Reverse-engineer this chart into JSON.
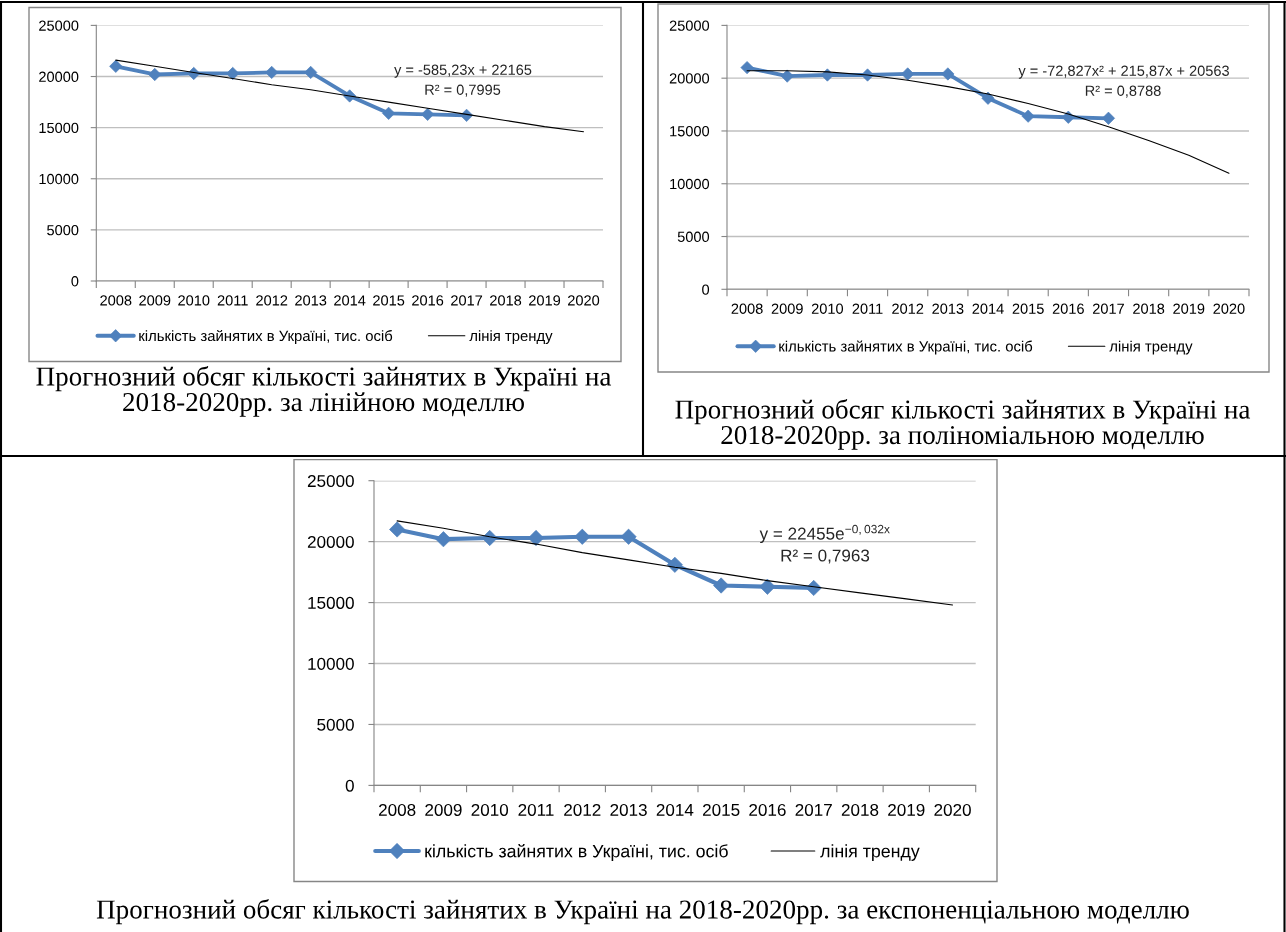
{
  "chart_data": [
    {
      "type": "line",
      "categories": [
        "2008",
        "2009",
        "2010",
        "2011",
        "2012",
        "2013",
        "2014",
        "2015",
        "2016",
        "2017",
        "2018",
        "2019",
        "2020"
      ],
      "series": [
        {
          "name": "кількість зайнятих в Україні, тис. осіб",
          "color": "#4f81bd",
          "marker": "diamond",
          "values": [
            21000,
            20200,
            20300,
            20300,
            20400,
            20400,
            18100,
            16400,
            16300,
            16200,
            null,
            null,
            null
          ]
        },
        {
          "name": "лінія тренду",
          "color": "#000000",
          "marker": "none",
          "values": [
            21600,
            21000,
            20400,
            19800,
            19200,
            18700,
            18100,
            17500,
            16900,
            16300,
            15700,
            15100,
            14600
          ]
        }
      ],
      "ylim": [
        0,
        25000
      ],
      "yticks": [
        0,
        5000,
        10000,
        15000,
        20000,
        25000
      ],
      "grid": "y",
      "legend": "bottom",
      "annotations": [
        "y = -585,23x + 22165",
        "R² = 0,7995",
        "Прогнозний обсяг кількості зайнятих в Україні на 2018-2020рр. за лінійною моделлю"
      ]
    },
    {
      "type": "line",
      "categories": [
        "2008",
        "2009",
        "2010",
        "2011",
        "2012",
        "2013",
        "2014",
        "2015",
        "2016",
        "2017",
        "2018",
        "2019",
        "2020"
      ],
      "series": [
        {
          "name": "кількість зайнятих в Україні, тис. осіб",
          "color": "#4f81bd",
          "marker": "diamond",
          "values": [
            21000,
            20200,
            20300,
            20300,
            20400,
            20400,
            18100,
            16400,
            16300,
            16200,
            null,
            null,
            null
          ]
        },
        {
          "name": "лінія тренду",
          "color": "#000000",
          "marker": "none",
          "values": [
            20700,
            20700,
            20600,
            20300,
            19800,
            19200,
            18500,
            17600,
            16600,
            15400,
            14100,
            12700,
            11000
          ]
        }
      ],
      "ylim": [
        0,
        25000
      ],
      "yticks": [
        0,
        5000,
        10000,
        15000,
        20000,
        25000
      ],
      "grid": "y",
      "legend": "bottom",
      "annotations": [
        "y = -72,827x² + 215,87x + 20563",
        "R² = 0,8788",
        "Прогнозний обсяг кількості зайнятих в Україні на 2018-2020рр. за поліноміальною моделлю"
      ]
    },
    {
      "type": "line",
      "categories": [
        "2008",
        "2009",
        "2010",
        "2011",
        "2012",
        "2013",
        "2014",
        "2015",
        "2016",
        "2017",
        "2018",
        "2019",
        "2020"
      ],
      "series": [
        {
          "name": "кількість зайнятих в Україні, тис. осіб",
          "color": "#4f81bd",
          "marker": "diamond",
          "values": [
            21000,
            20200,
            20300,
            20300,
            20400,
            20400,
            18100,
            16400,
            16300,
            16200,
            null,
            null,
            null
          ]
        },
        {
          "name": "лінія тренду",
          "color": "#000000",
          "marker": "none",
          "values": [
            21700,
            21100,
            20400,
            19800,
            19100,
            18500,
            17900,
            17400,
            16800,
            16300,
            15800,
            15300,
            14800
          ]
        }
      ],
      "ylim": [
        0,
        25000
      ],
      "yticks": [
        0,
        5000,
        10000,
        15000,
        20000,
        25000
      ],
      "grid": "y",
      "legend": "bottom",
      "annotations": [
        "y = 22455e$^{−0,032x}$",
        "R² = 0,7963",
        "Прогнозний обсяг кількості зайнятих в Україні на 2018-2020рр. за експоненціальною моделлю"
      ]
    }
  ]
}
